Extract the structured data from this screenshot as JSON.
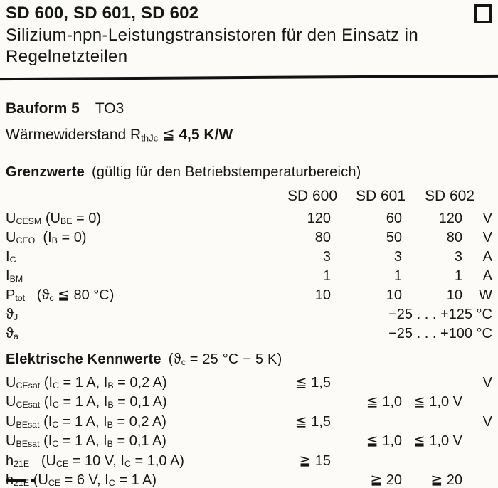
{
  "document": {
    "title": "SD 600, SD 601, SD 602",
    "subtitle": "Silizium-npn-Leistungstransistoren für den Einsatz in Regelnetzteilen",
    "package": {
      "label": "Bauform 5",
      "value": "TO3"
    },
    "thermal_resistance_html": "Wärmewiderstand R<sub>thJc</sub> ≦ <b>4,5 K/W</b>",
    "grenzwerte": {
      "heading": "Grenzwerte",
      "heading_note": "(gültig für den Betriebstemperaturbereich)",
      "columns": [
        "SD 600",
        "SD 601",
        "SD 602"
      ],
      "rows": [
        {
          "param_html": "U<sub>CESM</sub> (U<sub>BE</sub> = 0)",
          "sd600": "120",
          "sd601": "60",
          "sd602": "120",
          "unit": "V"
        },
        {
          "param_html": "U<sub>CEO</sub>&nbsp; (I<sub>B</sub> = 0)",
          "sd600": "80",
          "sd601": "50",
          "sd602": "80",
          "unit": "V"
        },
        {
          "param_html": "I<sub>C</sub>",
          "sd600": "3",
          "sd601": "3",
          "sd602": "3",
          "unit": "A"
        },
        {
          "param_html": "I<sub>BM</sub>",
          "sd600": "1",
          "sd601": "1",
          "sd602": "1",
          "unit": "A"
        },
        {
          "param_html": "P<sub>tot</sub>&nbsp;&nbsp;&nbsp;(ϑ<sub>c</sub> ≦ 80 °C)",
          "sd600": "10",
          "sd601": "10",
          "sd602": "10",
          "unit": "W"
        },
        {
          "param_html": "ϑ<sub>J</sub>",
          "range": "−25 . . . +125 °C"
        },
        {
          "param_html": "ϑ<sub>a</sub>",
          "range": "−25 . . . +100 °C"
        }
      ]
    },
    "kennwerte": {
      "heading": "Elektrische Kennwerte",
      "heading_note_html": "(ϑ<sub>c</sub> = 25 °C − 5 K)",
      "rows": [
        {
          "param_html": "U<sub>CEsat</sub> (I<sub>C</sub> = 1 A, I<sub>B</sub> = 0,2 A)",
          "sd600": "≦ 1,5",
          "unit": "V"
        },
        {
          "param_html": "U<sub>CEsat</sub> (I<sub>C</sub> = 1 A, I<sub>B</sub> = 0,1 A)",
          "sd601": "≦ 1,0",
          "sd602": "≦ 1,0 V"
        },
        {
          "param_html": "U<sub>BEsat</sub> (I<sub>C</sub> = 1 A, I<sub>B</sub> = 0,2 A)",
          "sd600": "≦ 1,5",
          "unit": "V"
        },
        {
          "param_html": "U<sub>BEsat</sub> (I<sub>C</sub> = 1 A, I<sub>B</sub> = 0,1 A)",
          "sd601": "≦ 1,0",
          "sd602": "≦ 1,0 V"
        },
        {
          "param_html": "h<sub>21E</sub>&nbsp;&nbsp;&nbsp;(U<sub>CE</sub> = 10 V, I<sub>C</sub> = 1,0 A)",
          "sd600": "≧ 15"
        },
        {
          "param_html": "h<sub>21E</sub> (U<sub>CE</sub> = 6 V, I<sub>C</sub> = 1 A)",
          "sd601": "≧ 20",
          "sd602": "≧ 20"
        }
      ]
    }
  }
}
